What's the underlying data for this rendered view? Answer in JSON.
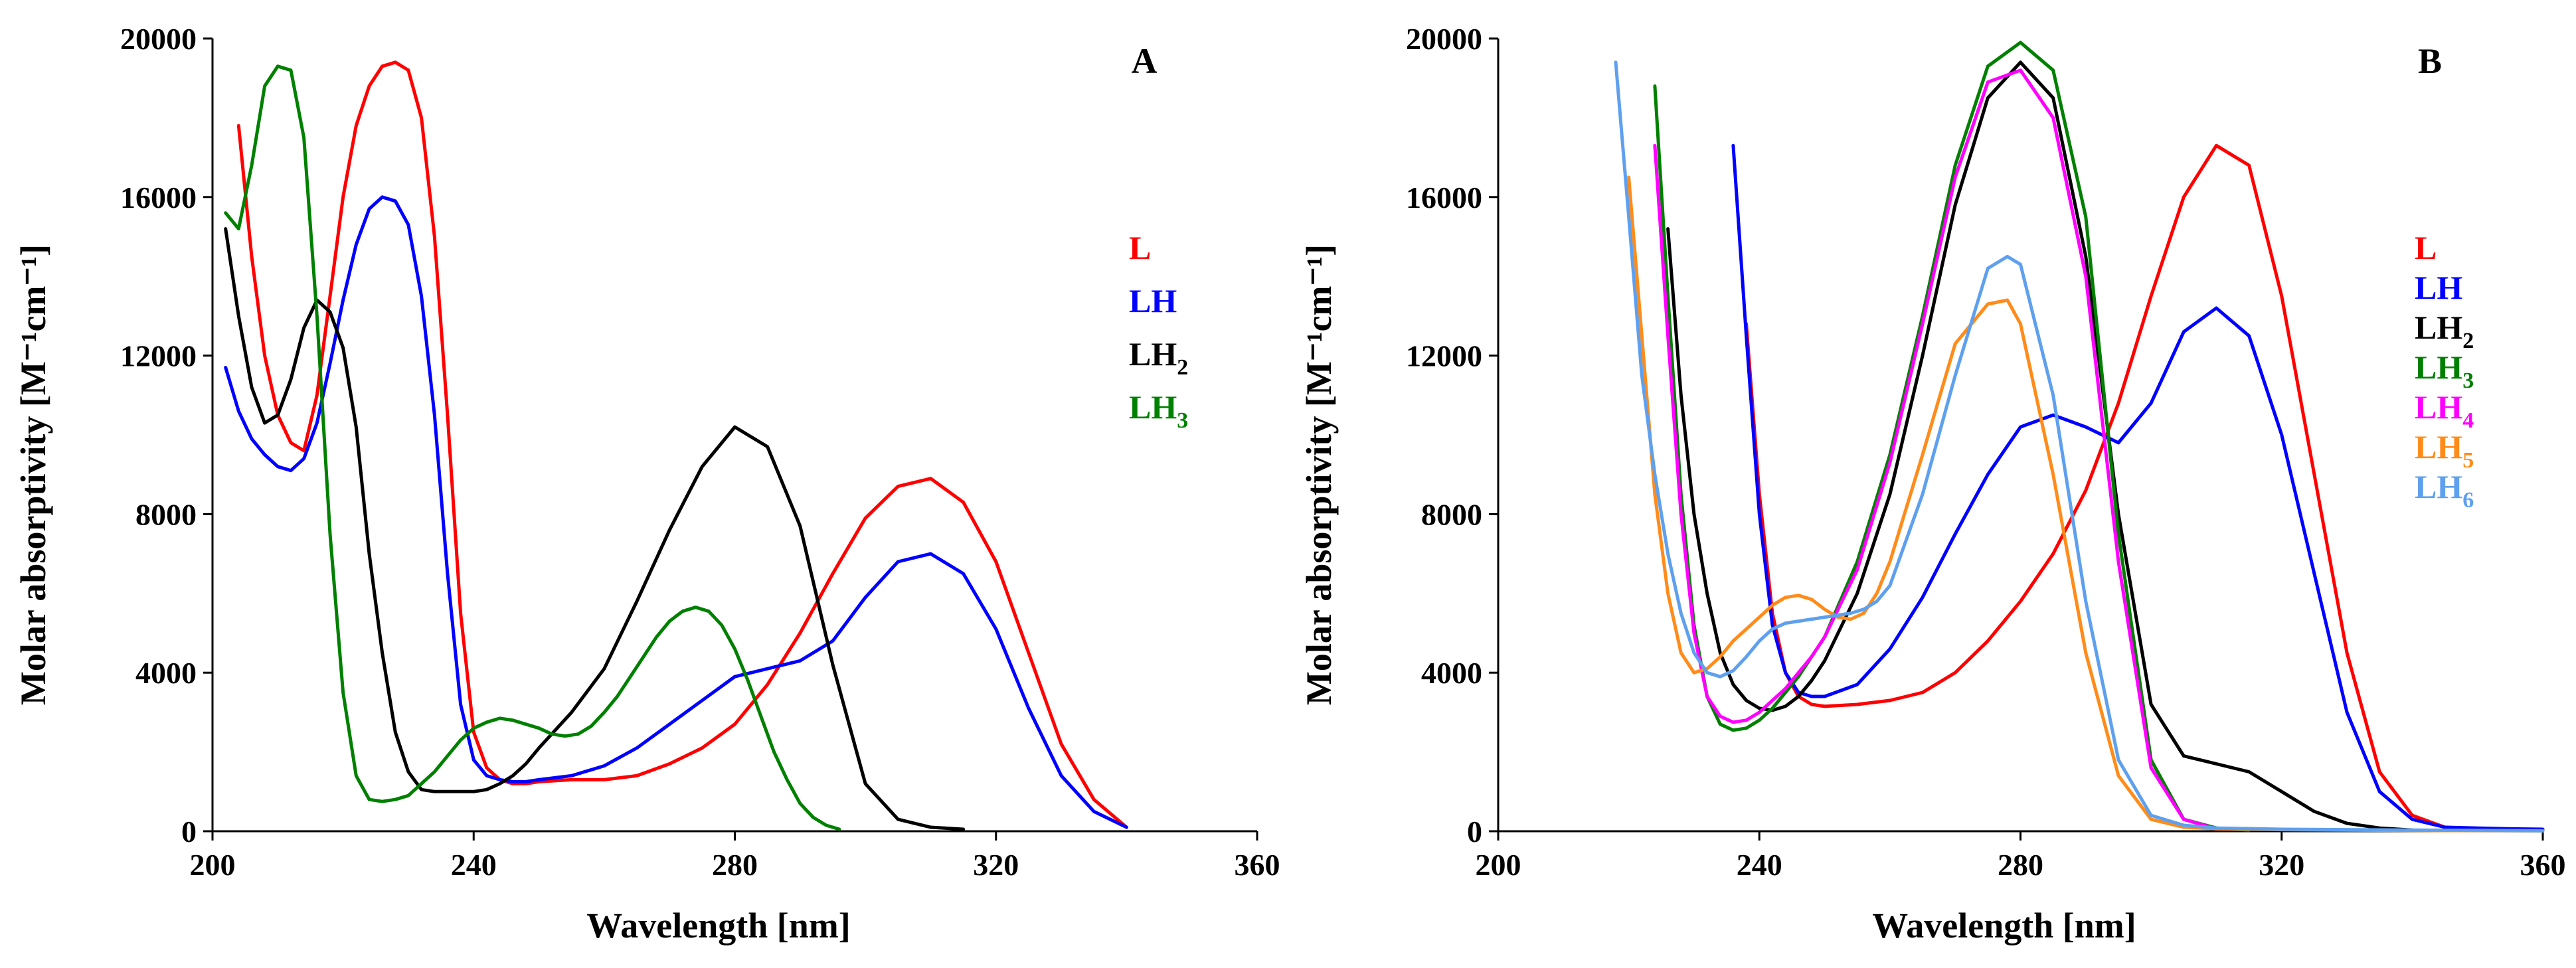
{
  "chart_data": [
    {
      "type": "line",
      "panel_label": "A",
      "xlabel": "Wavelength [nm]",
      "ylabel": "Molar absorptivity [M⁻¹cm⁻¹]",
      "xlim": [
        200,
        360
      ],
      "ylim": [
        0,
        20000
      ],
      "x_ticks": [
        200,
        240,
        280,
        320,
        360
      ],
      "y_ticks": [
        0,
        4000,
        8000,
        12000,
        16000,
        20000
      ],
      "legend_position": "right",
      "series": [
        {
          "name": "L",
          "base": "L",
          "sub": "",
          "color": "#ff0000",
          "x": [
            204,
            206,
            208,
            210,
            212,
            214,
            216,
            218,
            220,
            222,
            224,
            226,
            228,
            230,
            232,
            234,
            236,
            238,
            240,
            242,
            244,
            246,
            248,
            250,
            255,
            260,
            265,
            270,
            275,
            280,
            285,
            290,
            295,
            300,
            305,
            310,
            315,
            320,
            325,
            330,
            335,
            340
          ],
          "y": [
            17800,
            14500,
            12000,
            10500,
            9800,
            9600,
            11000,
            13500,
            16000,
            17800,
            18800,
            19300,
            19400,
            19200,
            18000,
            15000,
            10500,
            5500,
            2500,
            1600,
            1300,
            1200,
            1200,
            1250,
            1300,
            1300,
            1400,
            1700,
            2100,
            2700,
            3700,
            5000,
            6500,
            7900,
            8700,
            8900,
            8300,
            6800,
            4500,
            2200,
            800,
            100
          ]
        },
        {
          "name": "LH",
          "base": "LH",
          "sub": "",
          "color": "#0000ff",
          "x": [
            202,
            204,
            206,
            208,
            210,
            212,
            214,
            216,
            218,
            220,
            222,
            224,
            226,
            228,
            230,
            232,
            234,
            236,
            238,
            240,
            242,
            244,
            246,
            248,
            250,
            255,
            260,
            265,
            270,
            275,
            280,
            285,
            290,
            295,
            300,
            305,
            310,
            315,
            320,
            325,
            330,
            335,
            340
          ],
          "y": [
            11700,
            10600,
            9900,
            9500,
            9200,
            9100,
            9400,
            10300,
            11800,
            13400,
            14800,
            15700,
            16000,
            15900,
            15300,
            13500,
            10500,
            6500,
            3200,
            1800,
            1400,
            1300,
            1250,
            1250,
            1300,
            1400,
            1650,
            2100,
            2700,
            3300,
            3900,
            4100,
            4300,
            4800,
            5900,
            6800,
            7000,
            6500,
            5100,
            3100,
            1400,
            500,
            100
          ]
        },
        {
          "name": "LH2",
          "base": "LH",
          "sub": "2",
          "color": "#000000",
          "x": [
            202,
            204,
            206,
            208,
            210,
            212,
            214,
            216,
            218,
            220,
            222,
            224,
            226,
            228,
            230,
            232,
            234,
            236,
            238,
            240,
            242,
            244,
            246,
            248,
            250,
            255,
            260,
            265,
            270,
            275,
            280,
            285,
            290,
            295,
            300,
            305,
            310,
            315
          ],
          "y": [
            15200,
            13000,
            11200,
            10300,
            10500,
            11400,
            12700,
            13400,
            13100,
            12200,
            10200,
            7000,
            4500,
            2500,
            1500,
            1050,
            1000,
            1000,
            1000,
            1000,
            1050,
            1200,
            1400,
            1700,
            2100,
            3000,
            4100,
            5800,
            7600,
            9200,
            10200,
            9700,
            7700,
            4200,
            1200,
            300,
            100,
            50
          ]
        },
        {
          "name": "LH3",
          "base": "LH",
          "sub": "3",
          "color": "#008000",
          "x": [
            202,
            204,
            206,
            208,
            210,
            212,
            214,
            216,
            218,
            220,
            222,
            224,
            226,
            228,
            230,
            232,
            234,
            236,
            238,
            240,
            242,
            244,
            246,
            248,
            250,
            252,
            254,
            256,
            258,
            260,
            262,
            264,
            266,
            268,
            270,
            272,
            274,
            276,
            278,
            280,
            282,
            284,
            286,
            288,
            290,
            292,
            294,
            296
          ],
          "y": [
            15600,
            15200,
            16800,
            18800,
            19300,
            19200,
            17500,
            13000,
            7500,
            3500,
            1400,
            800,
            750,
            800,
            900,
            1200,
            1500,
            1900,
            2300,
            2600,
            2750,
            2850,
            2800,
            2700,
            2600,
            2450,
            2400,
            2450,
            2650,
            3000,
            3400,
            3900,
            4400,
            4900,
            5300,
            5550,
            5650,
            5550,
            5200,
            4600,
            3800,
            2900,
            2000,
            1300,
            700,
            350,
            150,
            50
          ]
        }
      ]
    },
    {
      "type": "line",
      "panel_label": "B",
      "xlabel": "Wavelength [nm]",
      "ylabel": "Molar absorptivity [M⁻¹cm⁻¹]",
      "xlim": [
        200,
        360
      ],
      "ylim": [
        0,
        20000
      ],
      "x_ticks": [
        200,
        240,
        280,
        320,
        360
      ],
      "y_ticks": [
        0,
        4000,
        8000,
        12000,
        16000,
        20000
      ],
      "legend_position": "right",
      "series": [
        {
          "name": "L",
          "base": "L",
          "sub": "",
          "color": "#ff0000",
          "x": [
            238,
            240,
            242,
            244,
            246,
            248,
            250,
            255,
            260,
            265,
            270,
            275,
            280,
            285,
            290,
            295,
            300,
            305,
            310,
            315,
            320,
            325,
            330,
            335,
            340,
            345,
            350,
            355,
            360
          ],
          "y": [
            12800,
            8500,
            5500,
            4000,
            3400,
            3200,
            3150,
            3200,
            3300,
            3500,
            4000,
            4800,
            5800,
            7000,
            8600,
            10800,
            13500,
            16000,
            17300,
            16800,
            13500,
            9000,
            4500,
            1500,
            400,
            100,
            50,
            30,
            20
          ]
        },
        {
          "name": "LH",
          "base": "LH",
          "sub": "",
          "color": "#0000ff",
          "x": [
            236,
            238,
            240,
            242,
            244,
            246,
            248,
            250,
            255,
            260,
            265,
            270,
            275,
            280,
            285,
            290,
            295,
            300,
            305,
            310,
            315,
            320,
            325,
            330,
            335,
            340,
            345,
            350,
            355,
            360
          ],
          "y": [
            17300,
            12500,
            8000,
            5200,
            4000,
            3500,
            3400,
            3400,
            3700,
            4600,
            5900,
            7500,
            9000,
            10200,
            10500,
            10200,
            9800,
            10800,
            12600,
            13200,
            12500,
            10000,
            6500,
            3000,
            1000,
            300,
            100,
            80,
            60,
            50
          ]
        },
        {
          "name": "LH2",
          "base": "LH",
          "sub": "2",
          "color": "#000000",
          "x": [
            226,
            228,
            230,
            232,
            234,
            236,
            238,
            240,
            242,
            244,
            246,
            248,
            250,
            255,
            260,
            265,
            270,
            275,
            280,
            285,
            290,
            295,
            300,
            305,
            310,
            315,
            320,
            325,
            330,
            335,
            340
          ],
          "y": [
            15200,
            11000,
            8000,
            6000,
            4500,
            3700,
            3300,
            3100,
            3050,
            3150,
            3400,
            3800,
            4300,
            6000,
            8500,
            12000,
            15800,
            18500,
            19400,
            18500,
            14500,
            8000,
            3200,
            1900,
            1700,
            1500,
            1000,
            500,
            200,
            80,
            30
          ]
        },
        {
          "name": "LH3",
          "base": "LH",
          "sub": "3",
          "color": "#008000",
          "x": [
            224,
            226,
            228,
            230,
            232,
            234,
            236,
            238,
            240,
            242,
            244,
            246,
            248,
            250,
            255,
            260,
            265,
            270,
            275,
            280,
            285,
            290,
            295,
            300,
            305,
            310,
            315
          ],
          "y": [
            18800,
            13500,
            8500,
            5200,
            3400,
            2700,
            2550,
            2600,
            2800,
            3100,
            3500,
            3900,
            4400,
            4900,
            6800,
            9500,
            13000,
            16800,
            19300,
            19900,
            19200,
            15500,
            7500,
            1800,
            300,
            80,
            30
          ]
        },
        {
          "name": "LH4",
          "base": "LH",
          "sub": "4",
          "color": "#ff00ff",
          "x": [
            224,
            226,
            228,
            230,
            232,
            234,
            236,
            238,
            240,
            242,
            244,
            246,
            248,
            250,
            255,
            260,
            265,
            270,
            275,
            280,
            285,
            290,
            295,
            300,
            305,
            310
          ],
          "y": [
            17300,
            12500,
            8000,
            5000,
            3400,
            2900,
            2750,
            2800,
            3000,
            3300,
            3600,
            4000,
            4400,
            4900,
            6600,
            9300,
            12800,
            16500,
            18900,
            19200,
            18000,
            14000,
            6800,
            1600,
            300,
            60
          ]
        },
        {
          "name": "LH5",
          "base": "LH",
          "sub": "5",
          "color": "#ff8c1a",
          "x": [
            220,
            222,
            224,
            226,
            228,
            230,
            232,
            234,
            236,
            238,
            240,
            242,
            244,
            246,
            248,
            250,
            252,
            254,
            256,
            258,
            260,
            265,
            270,
            275,
            278,
            280,
            285,
            290,
            295,
            300,
            305,
            310,
            320,
            330,
            340,
            350,
            360
          ],
          "y": [
            16500,
            12500,
            8500,
            6000,
            4500,
            4000,
            4100,
            4400,
            4800,
            5100,
            5400,
            5700,
            5900,
            5950,
            5850,
            5600,
            5400,
            5350,
            5500,
            6000,
            6800,
            9500,
            12300,
            13300,
            13400,
            12800,
            9000,
            4500,
            1400,
            300,
            100,
            60,
            40,
            30,
            20,
            15,
            10
          ]
        },
        {
          "name": "LH6",
          "base": "LH",
          "sub": "6",
          "color": "#5fa0ee",
          "x": [
            218,
            220,
            222,
            224,
            226,
            228,
            230,
            232,
            234,
            236,
            238,
            240,
            242,
            244,
            246,
            248,
            250,
            252,
            254,
            256,
            258,
            260,
            265,
            270,
            275,
            278,
            280,
            285,
            290,
            295,
            300,
            305,
            310,
            320,
            330,
            340,
            350,
            360
          ],
          "y": [
            19400,
            15500,
            11500,
            9000,
            7000,
            5500,
            4500,
            4000,
            3900,
            4050,
            4400,
            4800,
            5100,
            5250,
            5300,
            5350,
            5400,
            5450,
            5500,
            5600,
            5800,
            6200,
            8500,
            11500,
            14200,
            14500,
            14300,
            11000,
            5800,
            1800,
            400,
            150,
            80,
            50,
            40,
            30,
            20,
            10
          ]
        }
      ]
    }
  ]
}
